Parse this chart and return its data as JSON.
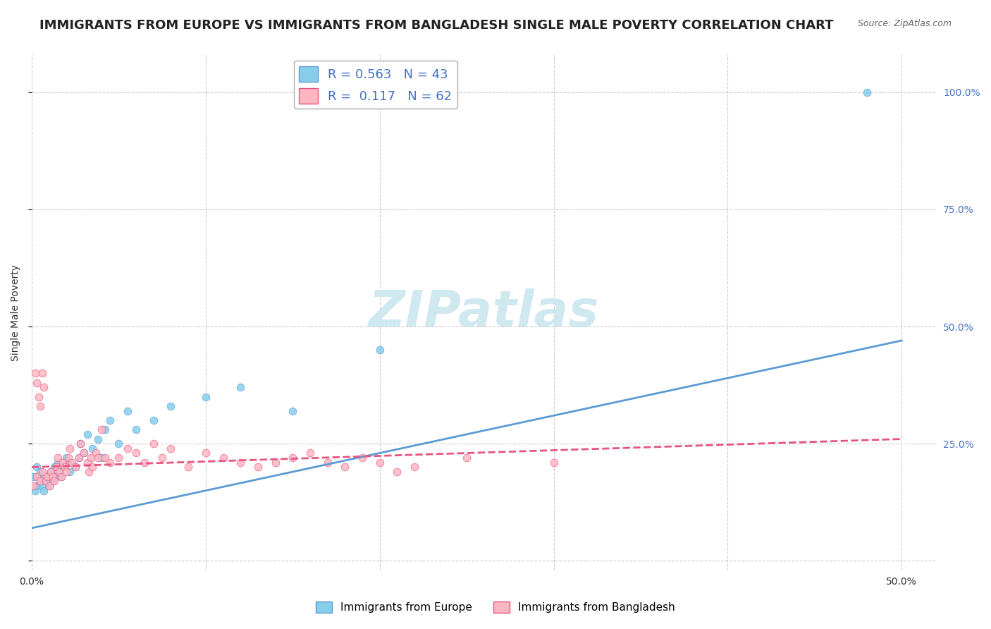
{
  "title": "IMMIGRANTS FROM EUROPE VS IMMIGRANTS FROM BANGLADESH SINGLE MALE POVERTY CORRELATION CHART",
  "source": "Source: ZipAtlas.com",
  "xlabel": "",
  "ylabel": "Single Male Poverty",
  "watermark": "ZIPatlas",
  "series": [
    {
      "name": "Immigrants from Europe",
      "color": "#87CEEB",
      "edge_color": "#5B9BD5",
      "R": 0.563,
      "N": 43,
      "x": [
        0.001,
        0.002,
        0.003,
        0.003,
        0.004,
        0.005,
        0.005,
        0.006,
        0.007,
        0.008,
        0.009,
        0.01,
        0.011,
        0.012,
        0.013,
        0.014,
        0.015,
        0.016,
        0.017,
        0.018,
        0.02,
        0.021,
        0.022,
        0.025,
        0.027,
        0.028,
        0.03,
        0.032,
        0.035,
        0.038,
        0.04,
        0.042,
        0.045,
        0.05,
        0.055,
        0.06,
        0.07,
        0.08,
        0.1,
        0.12,
        0.15,
        0.2,
        0.48
      ],
      "y": [
        0.18,
        0.15,
        0.16,
        0.2,
        0.18,
        0.17,
        0.19,
        0.16,
        0.15,
        0.17,
        0.18,
        0.16,
        0.19,
        0.17,
        0.2,
        0.18,
        0.21,
        0.19,
        0.18,
        0.2,
        0.22,
        0.21,
        0.19,
        0.2,
        0.22,
        0.25,
        0.23,
        0.27,
        0.24,
        0.26,
        0.22,
        0.28,
        0.3,
        0.25,
        0.32,
        0.28,
        0.3,
        0.33,
        0.35,
        0.37,
        0.32,
        0.45,
        1.0
      ],
      "trend_x": [
        0.0,
        0.5
      ],
      "trend_y": [
        0.07,
        0.47
      ],
      "linestyle": "-"
    },
    {
      "name": "Immigrants from Bangladesh",
      "color": "#FFB6C1",
      "edge_color": "#E75480",
      "R": 0.117,
      "N": 62,
      "x": [
        0.001,
        0.002,
        0.003,
        0.003,
        0.004,
        0.005,
        0.005,
        0.006,
        0.006,
        0.007,
        0.008,
        0.009,
        0.01,
        0.011,
        0.012,
        0.013,
        0.014,
        0.015,
        0.016,
        0.017,
        0.018,
        0.019,
        0.02,
        0.021,
        0.022,
        0.023,
        0.025,
        0.027,
        0.028,
        0.03,
        0.032,
        0.033,
        0.034,
        0.035,
        0.037,
        0.038,
        0.04,
        0.042,
        0.045,
        0.05,
        0.055,
        0.06,
        0.065,
        0.07,
        0.075,
        0.08,
        0.09,
        0.1,
        0.11,
        0.12,
        0.13,
        0.14,
        0.15,
        0.16,
        0.17,
        0.18,
        0.19,
        0.2,
        0.21,
        0.22,
        0.25,
        0.3
      ],
      "y": [
        0.16,
        0.4,
        0.38,
        0.18,
        0.35,
        0.33,
        0.17,
        0.19,
        0.4,
        0.37,
        0.17,
        0.18,
        0.16,
        0.19,
        0.18,
        0.17,
        0.2,
        0.22,
        0.19,
        0.18,
        0.21,
        0.2,
        0.19,
        0.22,
        0.24,
        0.21,
        0.2,
        0.22,
        0.25,
        0.23,
        0.21,
        0.19,
        0.22,
        0.2,
        0.23,
        0.22,
        0.28,
        0.22,
        0.21,
        0.22,
        0.24,
        0.23,
        0.21,
        0.25,
        0.22,
        0.24,
        0.2,
        0.23,
        0.22,
        0.21,
        0.2,
        0.21,
        0.22,
        0.23,
        0.21,
        0.2,
        0.22,
        0.21,
        0.19,
        0.2,
        0.22,
        0.21
      ],
      "trend_x": [
        0.0,
        0.5
      ],
      "trend_y": [
        0.2,
        0.26
      ],
      "linestyle": "--"
    }
  ],
  "xlim": [
    0.0,
    0.52
  ],
  "ylim": [
    -0.02,
    1.08
  ],
  "xticks": [
    0.0,
    0.1,
    0.2,
    0.3,
    0.4,
    0.5
  ],
  "xticklabels": [
    "0.0%",
    "",
    "",
    "",
    "",
    "50.0%"
  ],
  "yticks": [
    0.0,
    0.25,
    0.5,
    0.75,
    1.0
  ],
  "yticklabels": [
    "",
    "25.0%",
    "50.0%",
    "75.0%",
    "100.0%"
  ],
  "grid_color": "#CCCCCC",
  "background_color": "#FFFFFF",
  "title_fontsize": 13,
  "axis_label_fontsize": 10,
  "tick_fontsize": 10,
  "legend_fontsize": 13,
  "watermark_color": "#D0E8F0",
  "watermark_fontsize": 52,
  "right_tick_color": "#4472C4",
  "bottom_legend": [
    {
      "label": "Immigrants from Europe",
      "color": "#87CEEB",
      "edge_color": "#5B9BD5"
    },
    {
      "label": "Immigrants from Bangladesh",
      "color": "#FFB6C1",
      "edge_color": "#E75480"
    }
  ]
}
